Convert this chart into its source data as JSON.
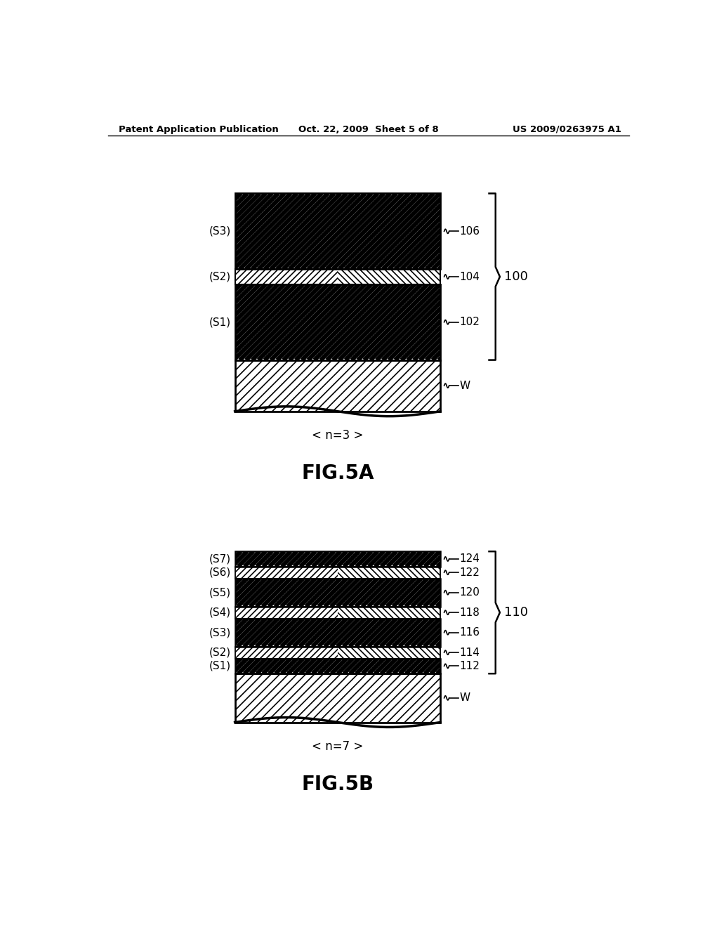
{
  "header_left": "Patent Application Publication",
  "header_mid": "Oct. 22, 2009  Sheet 5 of 8",
  "header_right": "US 2009/0263975 A1",
  "figA_label": "FIG.5A",
  "figB_label": "FIG.5B",
  "figA_caption": "< n=3 >",
  "figB_caption": "< n=7 >",
  "figA_brace_label": "100",
  "figB_brace_label": "110",
  "bg_color": "#ffffff"
}
